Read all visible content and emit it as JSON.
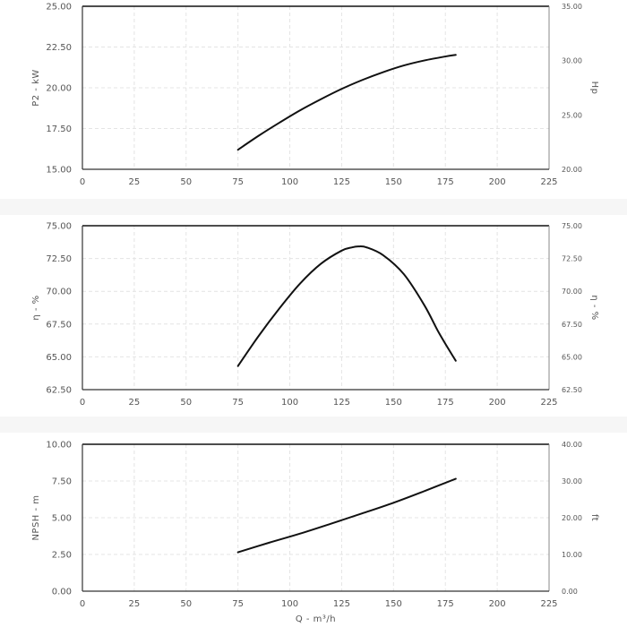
{
  "chart_data": [
    {
      "type": "line",
      "xlim": [
        0,
        225
      ],
      "xticks": [
        "0",
        "25",
        "50",
        "75",
        "100",
        "125",
        "150",
        "175",
        "200",
        "225"
      ],
      "ylim": [
        15,
        25
      ],
      "yticks": [
        "15.00",
        "17.50",
        "20.00",
        "22.50",
        "25.00"
      ],
      "ylabel": "P2 - kW",
      "y2lim": [
        20,
        35
      ],
      "y2ticks": [
        "20.00",
        "25.00",
        "30.00",
        "35.00"
      ],
      "y2label": "Hp",
      "xlabel": "",
      "grid": true,
      "series": [
        {
          "color": "#111111",
          "x": [
            75,
            85,
            95,
            105,
            115,
            125,
            135,
            145,
            155,
            165,
            175,
            180
          ],
          "y": [
            16.2,
            17.06,
            17.86,
            18.62,
            19.3,
            19.93,
            20.48,
            20.96,
            21.37,
            21.68,
            21.92,
            22.02
          ]
        }
      ]
    },
    {
      "type": "line",
      "xlim": [
        0,
        225
      ],
      "xticks": [
        "0",
        "25",
        "50",
        "75",
        "100",
        "125",
        "150",
        "175",
        "200",
        "225"
      ],
      "ylim": [
        62.5,
        75
      ],
      "yticks": [
        "62.50",
        "65.00",
        "67.50",
        "70.00",
        "72.50",
        "75.00"
      ],
      "ylabel": "η - %",
      "y2lim": [
        62.5,
        75
      ],
      "y2ticks": [
        "62.50",
        "65.00",
        "67.50",
        "70.00",
        "72.50",
        "75.00"
      ],
      "y2label": "η - %",
      "xlabel": "",
      "grid": true,
      "series": [
        {
          "color": "#111111",
          "x": [
            75,
            85,
            95,
            105,
            115,
            125,
            130,
            133,
            137,
            145,
            155,
            165,
            172,
            180
          ],
          "y": [
            64.3,
            66.6,
            68.7,
            70.6,
            72.1,
            73.1,
            73.35,
            73.42,
            73.35,
            72.75,
            71.3,
            68.9,
            66.8,
            64.7
          ]
        }
      ]
    },
    {
      "type": "line",
      "xlim": [
        0,
        225
      ],
      "xticks": [
        "0",
        "25",
        "50",
        "75",
        "100",
        "125",
        "150",
        "175",
        "200",
        "225"
      ],
      "ylim": [
        0,
        10
      ],
      "yticks": [
        "0.00",
        "2.50",
        "5.00",
        "7.50",
        "10.00"
      ],
      "ylabel": "NPSH - m",
      "y2lim": [
        0,
        40
      ],
      "y2ticks": [
        "0.00",
        "10.00",
        "20.00",
        "30.00",
        "40.00"
      ],
      "y2label": "ft",
      "xlabel": "Q - m³/h",
      "grid": true,
      "series": [
        {
          "color": "#111111",
          "x": [
            75,
            90,
            105,
            120,
            135,
            150,
            165,
            180
          ],
          "y": [
            2.65,
            3.3,
            3.92,
            4.6,
            5.3,
            6.02,
            6.82,
            7.65
          ]
        }
      ]
    }
  ]
}
